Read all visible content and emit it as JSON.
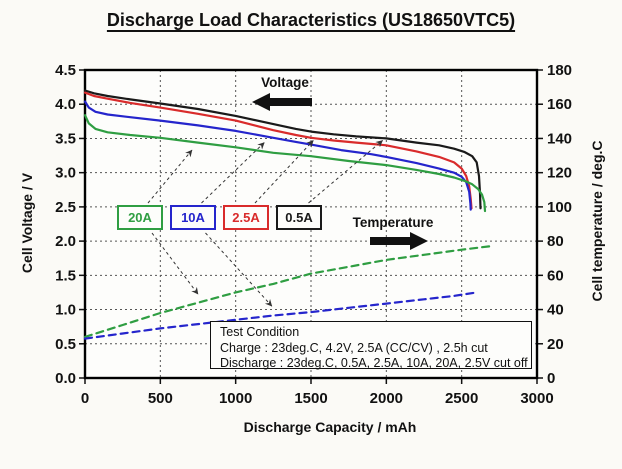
{
  "title": "Discharge Load Characteristics (US18650VTC5)",
  "annotations": {
    "voltage": "Voltage",
    "temperature": "Temperature"
  },
  "test_condition": {
    "title": "Test Condition",
    "charge": "Charge : 23deg.C, 4.2V, 2.5A (CC/CV) , 2.5h cut",
    "discharge": "Discharge : 23deg.C, 0.5A, 2.5A, 10A, 20A, 2.5V cut off"
  },
  "chart_data": {
    "type": "line",
    "title": "Discharge Load Characteristics (US18650VTC5)",
    "x_axis": {
      "label": "Discharge Capacity / mAh",
      "min": 0,
      "max": 3000,
      "ticks": [
        0,
        500,
        1000,
        1500,
        2000,
        2500,
        3000
      ]
    },
    "y_left": {
      "label": "Cell Voltage / V",
      "min": 0,
      "max": 4.5,
      "ticks": [
        "0.0",
        "0.5",
        "1.0",
        "1.5",
        "2.0",
        "2.5",
        "3.0",
        "3.5",
        "4.0",
        "4.5"
      ]
    },
    "y_right": {
      "label": "Cell temperature / deg.C",
      "min": 0,
      "max": 180,
      "ticks": [
        0,
        20,
        40,
        60,
        80,
        100,
        120,
        140,
        160,
        180
      ]
    },
    "grid": true,
    "legend": [
      {
        "label": "20A",
        "color": "#2f9e42"
      },
      {
        "label": "10A",
        "color": "#2525cc"
      },
      {
        "label": "2.5A",
        "color": "#d92b2b"
      },
      {
        "label": "0.5A",
        "color": "#1a1a1a"
      }
    ],
    "series": [
      {
        "name": "0.5A voltage",
        "axis": "left",
        "color": "#1a1a1a",
        "dash": false,
        "points": [
          [
            0,
            4.2
          ],
          [
            60,
            4.16
          ],
          [
            150,
            4.12
          ],
          [
            300,
            4.07
          ],
          [
            500,
            4.01
          ],
          [
            750,
            3.93
          ],
          [
            1000,
            3.83
          ],
          [
            1250,
            3.71
          ],
          [
            1400,
            3.64
          ],
          [
            1500,
            3.6
          ],
          [
            1650,
            3.56
          ],
          [
            1800,
            3.53
          ],
          [
            2000,
            3.5
          ],
          [
            2200,
            3.44
          ],
          [
            2350,
            3.4
          ],
          [
            2450,
            3.35
          ],
          [
            2520,
            3.3
          ],
          [
            2570,
            3.24
          ],
          [
            2600,
            3.15
          ],
          [
            2615,
            2.95
          ],
          [
            2622,
            2.7
          ],
          [
            2625,
            2.48
          ]
        ]
      },
      {
        "name": "2.5A voltage",
        "axis": "left",
        "color": "#d92b2b",
        "dash": false,
        "points": [
          [
            0,
            4.17
          ],
          [
            60,
            4.12
          ],
          [
            150,
            4.08
          ],
          [
            300,
            4.02
          ],
          [
            500,
            3.95
          ],
          [
            750,
            3.86
          ],
          [
            1000,
            3.76
          ],
          [
            1250,
            3.62
          ],
          [
            1400,
            3.55
          ],
          [
            1500,
            3.51
          ],
          [
            1650,
            3.47
          ],
          [
            1800,
            3.44
          ],
          [
            2000,
            3.4
          ],
          [
            2200,
            3.31
          ],
          [
            2350,
            3.23
          ],
          [
            2450,
            3.15
          ],
          [
            2500,
            3.06
          ],
          [
            2530,
            2.95
          ],
          [
            2550,
            2.8
          ],
          [
            2560,
            2.62
          ],
          [
            2565,
            2.48
          ]
        ]
      },
      {
        "name": "10A voltage",
        "axis": "left",
        "color": "#2525cc",
        "dash": false,
        "points": [
          [
            0,
            4.04
          ],
          [
            25,
            3.95
          ],
          [
            70,
            3.89
          ],
          [
            150,
            3.85
          ],
          [
            300,
            3.81
          ],
          [
            500,
            3.76
          ],
          [
            750,
            3.69
          ],
          [
            1000,
            3.61
          ],
          [
            1250,
            3.51
          ],
          [
            1400,
            3.45
          ],
          [
            1500,
            3.41
          ],
          [
            1700,
            3.33
          ],
          [
            1900,
            3.27
          ],
          [
            2000,
            3.23
          ],
          [
            2200,
            3.14
          ],
          [
            2350,
            3.06
          ],
          [
            2450,
            3.0
          ],
          [
            2500,
            2.94
          ],
          [
            2530,
            2.86
          ],
          [
            2550,
            2.72
          ],
          [
            2558,
            2.55
          ],
          [
            2560,
            2.46
          ]
        ]
      },
      {
        "name": "20A voltage",
        "axis": "left",
        "color": "#2f9e42",
        "dash": false,
        "points": [
          [
            0,
            3.84
          ],
          [
            25,
            3.72
          ],
          [
            70,
            3.64
          ],
          [
            150,
            3.59
          ],
          [
            300,
            3.55
          ],
          [
            500,
            3.51
          ],
          [
            750,
            3.44
          ],
          [
            1000,
            3.37
          ],
          [
            1250,
            3.29
          ],
          [
            1500,
            3.24
          ],
          [
            1750,
            3.17
          ],
          [
            2000,
            3.11
          ],
          [
            2200,
            3.04
          ],
          [
            2350,
            2.98
          ],
          [
            2450,
            2.93
          ],
          [
            2520,
            2.88
          ],
          [
            2570,
            2.83
          ],
          [
            2610,
            2.76
          ],
          [
            2635,
            2.68
          ],
          [
            2650,
            2.57
          ],
          [
            2655,
            2.44
          ]
        ]
      },
      {
        "name": "20A temperature",
        "axis": "right",
        "color": "#2f9e42",
        "dash": true,
        "points": [
          [
            0,
            24
          ],
          [
            250,
            31
          ],
          [
            500,
            38
          ],
          [
            750,
            44
          ],
          [
            1000,
            50
          ],
          [
            1250,
            55
          ],
          [
            1500,
            61
          ],
          [
            1750,
            65
          ],
          [
            2000,
            69
          ],
          [
            2250,
            72
          ],
          [
            2500,
            75
          ],
          [
            2690,
            77
          ]
        ]
      },
      {
        "name": "10A temperature",
        "axis": "right",
        "color": "#2525cc",
        "dash": true,
        "points": [
          [
            0,
            23
          ],
          [
            250,
            26
          ],
          [
            500,
            29
          ],
          [
            750,
            31.5
          ],
          [
            1000,
            34
          ],
          [
            1250,
            36.5
          ],
          [
            1500,
            38.5
          ],
          [
            1750,
            41
          ],
          [
            2000,
            43.5
          ],
          [
            2250,
            46
          ],
          [
            2450,
            48
          ],
          [
            2600,
            50
          ]
        ]
      }
    ],
    "callout_arrows": [
      {
        "legend": "20A",
        "type": "voltage",
        "to": [
          710,
          3.33
        ]
      },
      {
        "legend": "10A",
        "type": "voltage",
        "to": [
          1190,
          3.44
        ]
      },
      {
        "legend": "2.5A",
        "type": "voltage",
        "to": [
          1515,
          3.47
        ]
      },
      {
        "legend": "0.5A",
        "type": "voltage",
        "to": [
          1975,
          3.47
        ]
      },
      {
        "legend": "20A",
        "type": "temperature",
        "to": [
          750,
          49
        ]
      },
      {
        "legend": "10A",
        "type": "temperature",
        "to": [
          1240,
          42
        ]
      }
    ]
  }
}
